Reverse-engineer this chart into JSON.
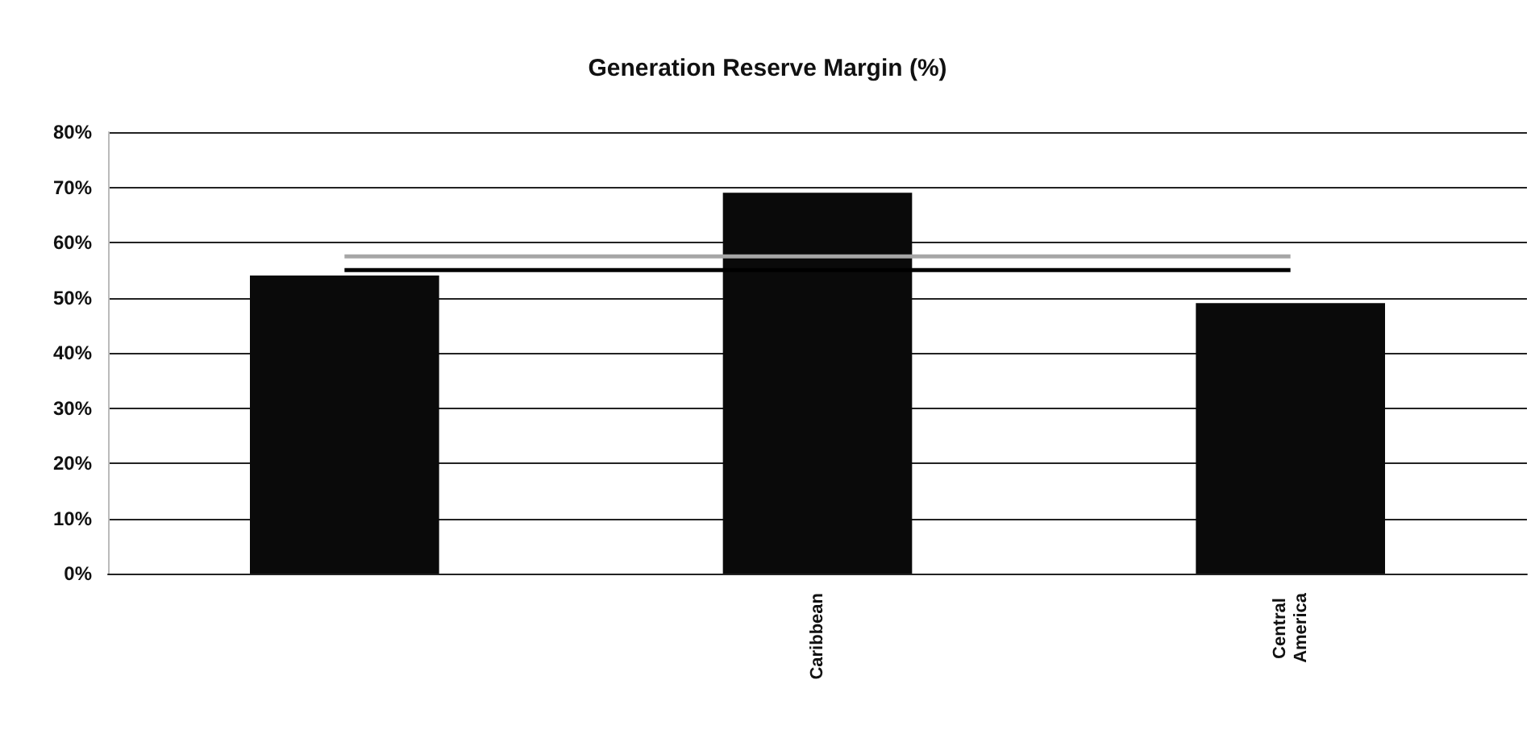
{
  "chart_data": {
    "type": "bar",
    "title": "Generation Reserve Margin (%)",
    "categories": [
      null,
      "Caribbean",
      "Central America"
    ],
    "series": [
      {
        "color": "#0a0a0a",
        "values": [
          54,
          69,
          49
        ]
      },
      {
        "type": "line",
        "color": "#000000",
        "values": [
          55,
          55,
          55
        ]
      },
      {
        "type": "line",
        "color": "#a6a6a6",
        "values": [
          57.5,
          57.5,
          57.5
        ]
      }
    ],
    "ylim": [
      0,
      80
    ],
    "yticks": [
      {
        "value": 0,
        "label": "0%"
      },
      {
        "value": 10,
        "label": "10%"
      },
      {
        "value": 20,
        "label": "20%"
      },
      {
        "value": 30,
        "label": "30%"
      },
      {
        "value": 40,
        "label": "40%"
      },
      {
        "value": 50,
        "label": "50%"
      },
      {
        "value": 60,
        "label": "60%"
      },
      {
        "value": 70,
        "label": "70%"
      },
      {
        "value": 80,
        "label": "80%"
      }
    ],
    "grid": "y",
    "marker": "none",
    "line_style": "solid"
  }
}
